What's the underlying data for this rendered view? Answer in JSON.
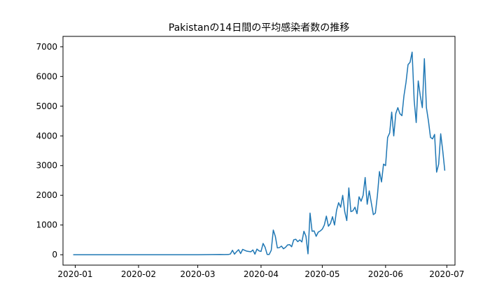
{
  "chart_data": {
    "type": "line",
    "title": "Pakistanの14日間の平均感染者数の推移",
    "xlabel": "",
    "ylabel": "",
    "x_ticks": [
      "2020-01",
      "2020-02",
      "2020-03",
      "2020-04",
      "2020-05",
      "2020-06",
      "2020-07"
    ],
    "y_ticks": [
      "0",
      "1000",
      "2000",
      "3000",
      "4000",
      "5000",
      "6000",
      "7000"
    ],
    "ylim": [
      -350,
      7350
    ],
    "xlim": [
      "2019-12-26",
      "2020-07-05"
    ],
    "grid": false,
    "legend": "none",
    "series": [
      {
        "color": "#1f77b4",
        "points": [
          [
            "2019-12-31",
            0
          ],
          [
            "2020-01-15",
            0
          ],
          [
            "2020-02-01",
            0
          ],
          [
            "2020-02-15",
            0
          ],
          [
            "2020-03-01",
            0
          ],
          [
            "2020-03-08",
            5
          ],
          [
            "2020-03-12",
            10
          ],
          [
            "2020-03-14",
            5
          ],
          [
            "2020-03-16",
            8
          ],
          [
            "2020-03-17",
            25
          ],
          [
            "2020-03-18",
            150
          ],
          [
            "2020-03-19",
            20
          ],
          [
            "2020-03-20",
            100
          ],
          [
            "2020-03-21",
            170
          ],
          [
            "2020-03-22",
            40
          ],
          [
            "2020-03-23",
            180
          ],
          [
            "2020-03-24",
            150
          ],
          [
            "2020-03-25",
            120
          ],
          [
            "2020-03-26",
            110
          ],
          [
            "2020-03-27",
            100
          ],
          [
            "2020-03-28",
            160
          ],
          [
            "2020-03-29",
            20
          ],
          [
            "2020-03-30",
            190
          ],
          [
            "2020-03-31",
            130
          ],
          [
            "2020-04-01",
            110
          ],
          [
            "2020-04-02",
            380
          ],
          [
            "2020-04-03",
            250
          ],
          [
            "2020-04-04",
            10
          ],
          [
            "2020-04-05",
            10
          ],
          [
            "2020-04-06",
            150
          ],
          [
            "2020-04-07",
            830
          ],
          [
            "2020-04-08",
            620
          ],
          [
            "2020-04-09",
            230
          ],
          [
            "2020-04-10",
            240
          ],
          [
            "2020-04-11",
            290
          ],
          [
            "2020-04-12",
            200
          ],
          [
            "2020-04-13",
            250
          ],
          [
            "2020-04-14",
            330
          ],
          [
            "2020-04-15",
            340
          ],
          [
            "2020-04-16",
            270
          ],
          [
            "2020-04-17",
            500
          ],
          [
            "2020-04-18",
            520
          ],
          [
            "2020-04-19",
            440
          ],
          [
            "2020-04-20",
            500
          ],
          [
            "2020-04-21",
            430
          ],
          [
            "2020-04-22",
            790
          ],
          [
            "2020-04-23",
            620
          ],
          [
            "2020-04-24",
            30
          ],
          [
            "2020-04-25",
            1400
          ],
          [
            "2020-04-26",
            790
          ],
          [
            "2020-04-27",
            800
          ],
          [
            "2020-04-28",
            620
          ],
          [
            "2020-04-29",
            760
          ],
          [
            "2020-04-30",
            800
          ],
          [
            "2020-05-01",
            860
          ],
          [
            "2020-05-02",
            1000
          ],
          [
            "2020-05-03",
            1300
          ],
          [
            "2020-05-04",
            960
          ],
          [
            "2020-05-05",
            1050
          ],
          [
            "2020-05-06",
            1280
          ],
          [
            "2020-05-07",
            1000
          ],
          [
            "2020-05-08",
            1500
          ],
          [
            "2020-05-09",
            1750
          ],
          [
            "2020-05-10",
            1600
          ],
          [
            "2020-05-11",
            2000
          ],
          [
            "2020-05-12",
            1450
          ],
          [
            "2020-05-13",
            1150
          ],
          [
            "2020-05-14",
            2250
          ],
          [
            "2020-05-15",
            1450
          ],
          [
            "2020-05-16",
            1480
          ],
          [
            "2020-05-17",
            1600
          ],
          [
            "2020-05-18",
            1380
          ],
          [
            "2020-05-19",
            1950
          ],
          [
            "2020-05-20",
            1800
          ],
          [
            "2020-05-21",
            2000
          ],
          [
            "2020-05-22",
            2600
          ],
          [
            "2020-05-23",
            1700
          ],
          [
            "2020-05-24",
            2150
          ],
          [
            "2020-05-25",
            1750
          ],
          [
            "2020-05-26",
            1350
          ],
          [
            "2020-05-27",
            1400
          ],
          [
            "2020-05-28",
            2000
          ],
          [
            "2020-05-29",
            2800
          ],
          [
            "2020-05-30",
            2450
          ],
          [
            "2020-05-31",
            3050
          ],
          [
            "2020-06-01",
            3000
          ],
          [
            "2020-06-02",
            3950
          ],
          [
            "2020-06-03",
            4100
          ],
          [
            "2020-06-04",
            4800
          ],
          [
            "2020-06-05",
            4000
          ],
          [
            "2020-06-06",
            4750
          ],
          [
            "2020-06-07",
            4950
          ],
          [
            "2020-06-08",
            4750
          ],
          [
            "2020-06-09",
            4680
          ],
          [
            "2020-06-10",
            5350
          ],
          [
            "2020-06-11",
            5800
          ],
          [
            "2020-06-12",
            6400
          ],
          [
            "2020-06-13",
            6480
          ],
          [
            "2020-06-14",
            6820
          ],
          [
            "2020-06-15",
            5200
          ],
          [
            "2020-06-16",
            4450
          ],
          [
            "2020-06-17",
            5850
          ],
          [
            "2020-06-18",
            5350
          ],
          [
            "2020-06-19",
            4950
          ],
          [
            "2020-06-20",
            6600
          ],
          [
            "2020-06-21",
            4950
          ],
          [
            "2020-06-22",
            4500
          ],
          [
            "2020-06-23",
            3950
          ],
          [
            "2020-06-24",
            3900
          ],
          [
            "2020-06-25",
            4050
          ],
          [
            "2020-06-26",
            2780
          ],
          [
            "2020-06-27",
            3050
          ],
          [
            "2020-06-28",
            4070
          ],
          [
            "2020-06-29",
            3500
          ],
          [
            "2020-06-30",
            2830
          ]
        ]
      }
    ]
  }
}
